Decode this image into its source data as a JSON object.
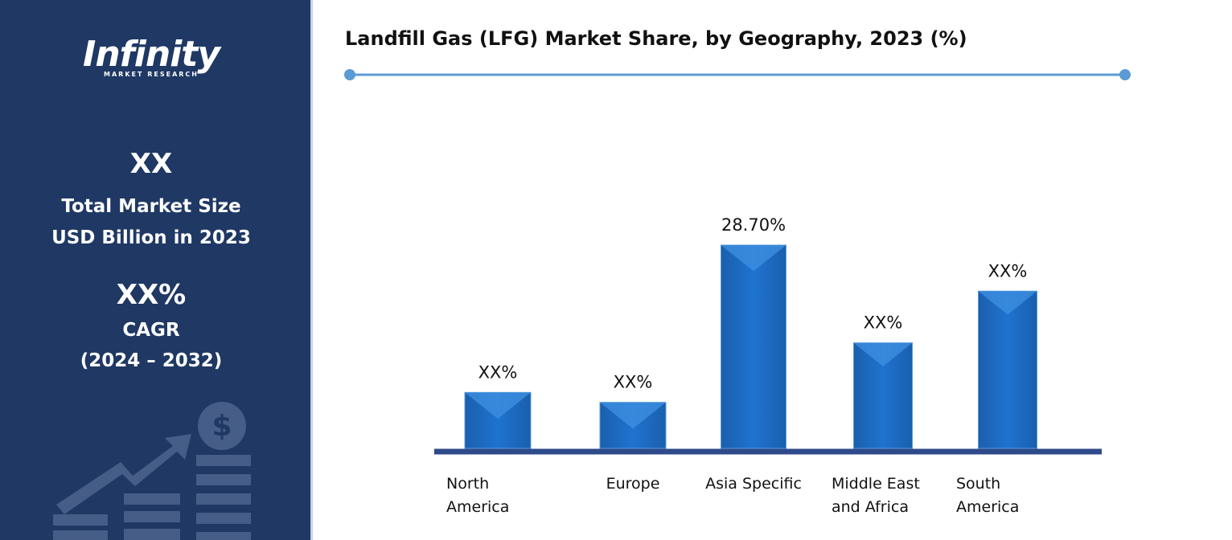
{
  "sidebar": {
    "logo": "Infinity",
    "logo_sub": "MARKET RESEARCH",
    "market_size": "XX",
    "market_size_label_1": "Total Market Size",
    "market_size_label_2": "USD Billion in 2023",
    "cagr": "XX%",
    "cagr_label": "CAGR",
    "cagr_period": "(2024 – 2032)"
  },
  "chart_data": {
    "type": "bar",
    "title": "Landfill Gas (LFG) Market Share, by Geography, 2023 (%)",
    "categories": [
      "North America",
      "Europe",
      "Asia Specific",
      "Middle East and Africa",
      "South America"
    ],
    "values": [
      7.9,
      6.5,
      28.7,
      14.9,
      22.2
    ],
    "value_labels": [
      "XX%",
      "XX%",
      "28.70%",
      "XX%",
      "XX%"
    ],
    "color": "#1f6fc5"
  }
}
